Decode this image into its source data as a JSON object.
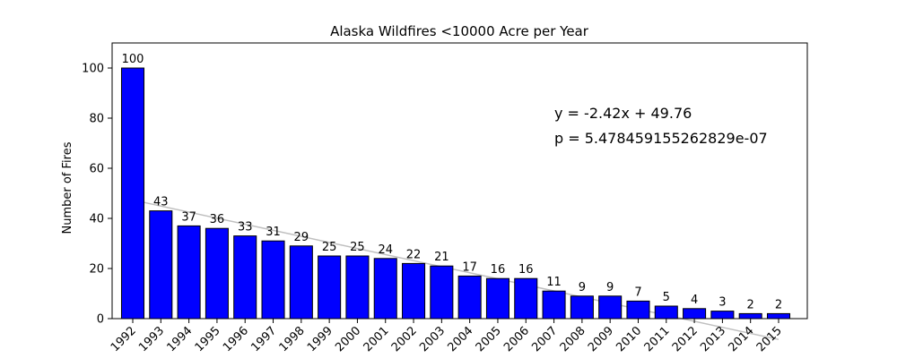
{
  "chart_data": {
    "type": "bar",
    "title": "Alaska Wildfires <10000 Acre per Year",
    "xlabel": "",
    "ylabel": "Number of Fires",
    "ylim": [
      0,
      110
    ],
    "yticks": [
      0,
      20,
      40,
      60,
      80,
      100
    ],
    "grid": false,
    "categories": [
      "1992",
      "1993",
      "1994",
      "1995",
      "1996",
      "1997",
      "1998",
      "1999",
      "2000",
      "2001",
      "2002",
      "2003",
      "2004",
      "2005",
      "2006",
      "2007",
      "2008",
      "2009",
      "2010",
      "2011",
      "2012",
      "2013",
      "2014",
      "2015"
    ],
    "values": [
      100,
      43,
      37,
      36,
      33,
      31,
      29,
      25,
      25,
      24,
      22,
      21,
      17,
      16,
      16,
      11,
      9,
      9,
      7,
      5,
      4,
      3,
      2,
      2
    ],
    "data_labels": [
      "100",
      "43",
      "37",
      "36",
      "33",
      "31",
      "29",
      "25",
      "25",
      "24",
      "22",
      "21",
      "17",
      "16",
      "16",
      "11",
      "9",
      "9",
      "7",
      "5",
      "4",
      "3",
      "2",
      "2"
    ],
    "bar_color": "#0000ff",
    "bar_edge_color": "#000000",
    "trendline": {
      "slope": -2.42,
      "intercept": 49.76,
      "color": "#bfbfbf"
    },
    "annotations": {
      "equation": "y = -2.42x + 49.76",
      "p_value": "p = 5.478459155262829e-07"
    }
  }
}
